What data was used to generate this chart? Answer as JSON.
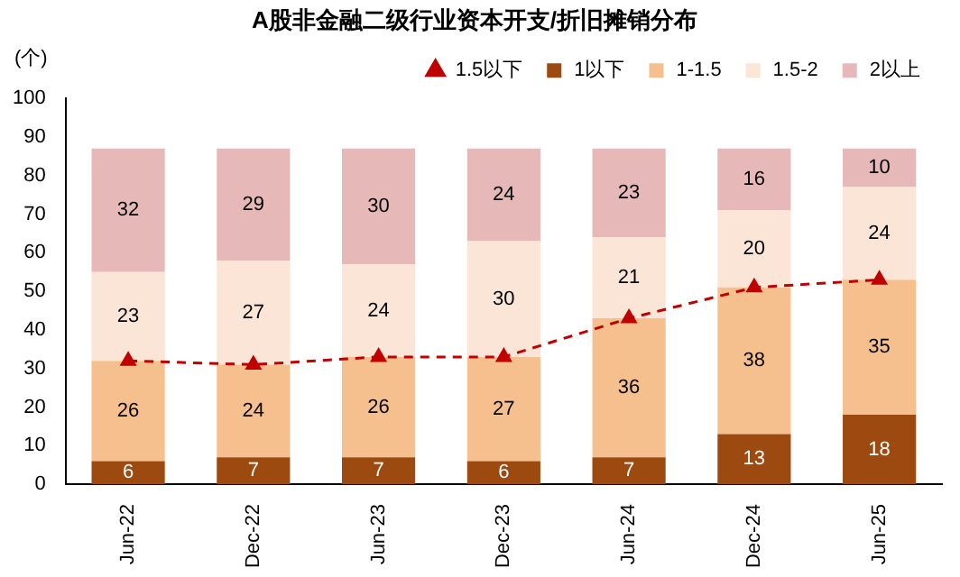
{
  "chart_data": {
    "type": "bar",
    "title": "A股非金融二级行业资本开支/折旧摊销分布",
    "ylabel": "(个)",
    "stacked": true,
    "categories": [
      "Jun-22",
      "Dec-22",
      "Jun-23",
      "Dec-23",
      "Jun-24",
      "Dec-24",
      "Jun-25"
    ],
    "series": [
      {
        "name": "1以下",
        "color": "#9c4a10",
        "values": [
          6,
          7,
          7,
          6,
          7,
          13,
          18
        ],
        "value_labels": [
          "6",
          "7",
          "7",
          "6",
          "7",
          "13",
          "18"
        ]
      },
      {
        "name": "1-1.5",
        "color": "#f5c08e",
        "values": [
          26,
          24,
          26,
          27,
          36,
          38,
          35
        ],
        "value_labels": [
          "26",
          "24",
          "26",
          "27",
          "36",
          "38",
          "35"
        ]
      },
      {
        "name": "1.5-2",
        "color": "#fbe5d6",
        "values": [
          23,
          27,
          24,
          30,
          21,
          20,
          24
        ],
        "value_labels": [
          "23",
          "27",
          "24",
          "30",
          "21",
          "20",
          "24"
        ]
      },
      {
        "name": "2以上",
        "color": "#e6b9b8",
        "values": [
          32,
          29,
          30,
          24,
          23,
          16,
          10
        ],
        "value_labels": [
          "32",
          "29",
          "30",
          "24",
          "23",
          "16",
          "10"
        ]
      },
      {
        "name": "1.5以下",
        "type": "line",
        "color": "#c00000",
        "marker": "triangle",
        "line_style": "dashed",
        "values": [
          32,
          31,
          33,
          33,
          43,
          51,
          53
        ]
      }
    ],
    "ylim": [
      0,
      100
    ],
    "yticks": [
      0,
      10,
      20,
      30,
      40,
      50,
      60,
      70,
      80,
      90,
      100
    ],
    "grid": false,
    "legend": "top"
  }
}
